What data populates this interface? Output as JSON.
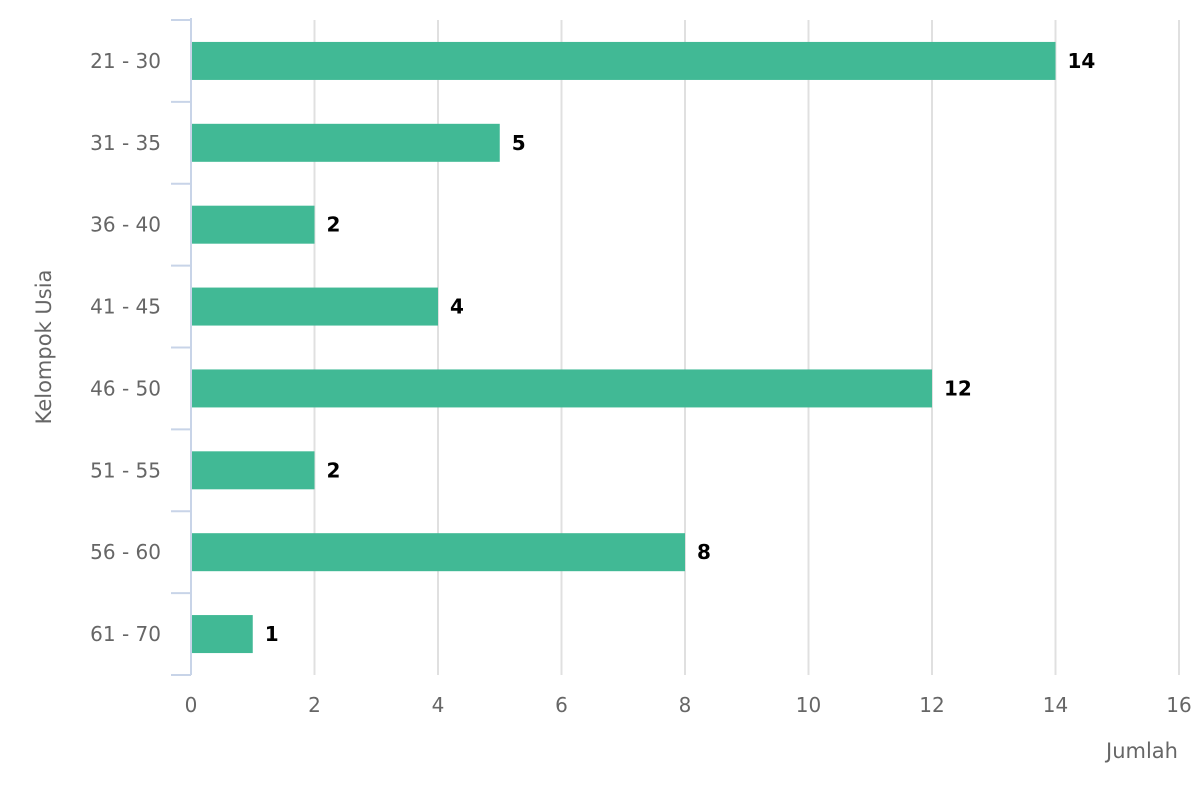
{
  "chart_data": {
    "type": "bar",
    "orientation": "horizontal",
    "categories": [
      "21 - 30",
      "31 - 35",
      "36 - 40",
      "41 - 45",
      "46 - 50",
      "51 - 55",
      "56 - 60",
      "61 - 70"
    ],
    "values": [
      14,
      5,
      2,
      4,
      12,
      2,
      8,
      1
    ],
    "data_labels": [
      "14",
      "5",
      "2",
      "4",
      "12",
      "2",
      "8",
      "1"
    ],
    "xlabel": "Jumlah",
    "ylabel": "Kelompok Usia",
    "xlim": [
      0,
      16
    ],
    "x_ticks": [
      "0",
      "2",
      "4",
      "6",
      "8",
      "10",
      "12",
      "14",
      "16"
    ],
    "grid": true,
    "bar_color": "#41b995"
  }
}
